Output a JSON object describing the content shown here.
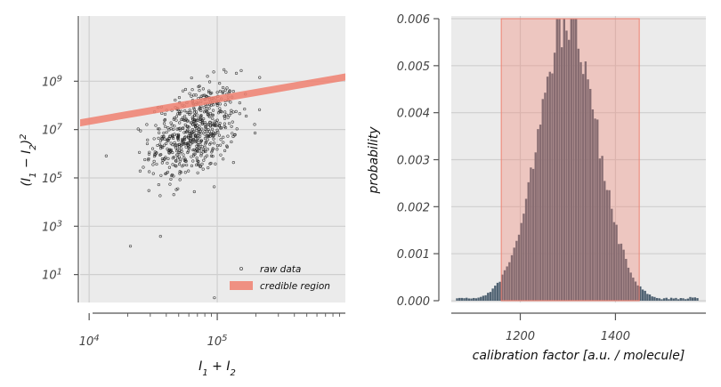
{
  "chart_data": [
    {
      "type": "scatter",
      "xscale": "log",
      "yscale": "log",
      "xlim": [
        8500,
        1000000
      ],
      "ylim": [
        0.7,
        500000000000
      ],
      "grid": true,
      "xlabel": "I₁ + I₂",
      "ylabel": "(I₁ − I₂)²",
      "x_ticks": [
        {
          "value": 10000,
          "base": "10",
          "exp": "4"
        },
        {
          "value": 100000,
          "base": "10",
          "exp": "5"
        }
      ],
      "y_ticks": [
        {
          "value": 10,
          "base": "10",
          "exp": "1"
        },
        {
          "value": 1000,
          "base": "10",
          "exp": "3"
        },
        {
          "value": 100000,
          "base": "10",
          "exp": "5"
        },
        {
          "value": 10000000,
          "base": "10",
          "exp": "7"
        },
        {
          "value": 1000000000,
          "base": "10",
          "exp": "9"
        }
      ],
      "legend": {
        "position": "lower-right",
        "entries": [
          "raw data",
          "credible region"
        ]
      },
      "scatter_summary": {
        "n_points": 600,
        "log10_x_mean": 4.82,
        "log10_x_sd": 0.17,
        "log10_y_mean": 6.9,
        "log10_y_sd": 0.9
      },
      "notable_points": [
        [
          21000,
          150
        ],
        [
          95000,
          1.1
        ]
      ],
      "credible_region": {
        "x": [
          8500,
          1000000
        ],
        "y": [
          19000000,
          1500000000
        ]
      },
      "colors": {
        "points": "#222222",
        "region": "#f08070",
        "background": "#ebebeb"
      }
    },
    {
      "type": "bar",
      "subtype": "histogram",
      "xlim": [
        1055,
        1590
      ],
      "ylim": [
        0,
        0.006
      ],
      "grid": true,
      "xlabel": "calibration factor [a.u. / molecule]",
      "ylabel": "probability",
      "x_ticks": [
        "1200",
        "1400"
      ],
      "x_tick_values": [
        1200,
        1400
      ],
      "y_ticks": [
        "0.000",
        "0.001",
        "0.002",
        "0.003",
        "0.004",
        "0.005",
        "0.006"
      ],
      "y_tick_values": [
        0,
        0.001,
        0.002,
        0.003,
        0.004,
        0.005,
        0.006
      ],
      "histogram_summary": {
        "bin_width": 5,
        "mean": 1300,
        "sd": 62,
        "peak": 0.006,
        "range": [
          1065,
          1575
        ]
      },
      "credible_region": [
        1160,
        1450
      ],
      "colors": {
        "bars": "#4f6272",
        "region": "#f08070",
        "background": "#ebebeb"
      }
    }
  ]
}
